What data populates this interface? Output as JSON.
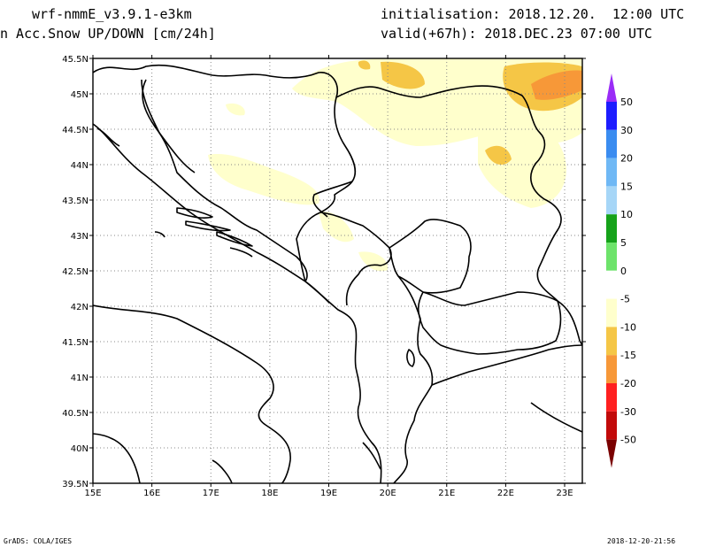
{
  "header": {
    "model": "wrf-nmmE_v3.9.1-e3km",
    "field": "n Acc.Snow UP/DOWN [cm/24h]",
    "initialisation": "initialisation: 2018.12.20.  12:00 UTC",
    "valid": "valid(+67h): 2018.DEC.23 07:00 UTC"
  },
  "map": {
    "lon_range": [
      15,
      23.3
    ],
    "lat_range": [
      39.5,
      45.5
    ],
    "lon_ticks": [
      "15E",
      "16E",
      "17E",
      "18E",
      "19E",
      "20E",
      "21E",
      "22E",
      "23E"
    ],
    "lat_ticks": [
      "45.5N",
      "45N",
      "44.5N",
      "44N",
      "43.5N",
      "43N",
      "42.5N",
      "42N",
      "41.5N",
      "41N",
      "40.5N",
      "40N",
      "39.5N"
    ],
    "grid": "dotted"
  },
  "colorbar": {
    "labels": [
      "50",
      "30",
      "20",
      "15",
      "10",
      "5",
      "0",
      "-5",
      "-10",
      "-15",
      "-20",
      "-30",
      "-50"
    ],
    "colors": [
      "#1d1dff",
      "#3a8cf0",
      "#6fb8f5",
      "#a6d6f7",
      "#16a21a",
      "#6de36a",
      "#ffffff",
      "#ffffcc",
      "#f5c646",
      "#f79838",
      "#ff2020",
      "#c20a0a",
      "#8c0000"
    ],
    "top_arrow_color": "#9a2cf7",
    "bottom_arrow_color": "#7a0000"
  },
  "footer": {
    "left": "GrADS: COLA/IGES",
    "right": "2018-12-20-21:56"
  }
}
